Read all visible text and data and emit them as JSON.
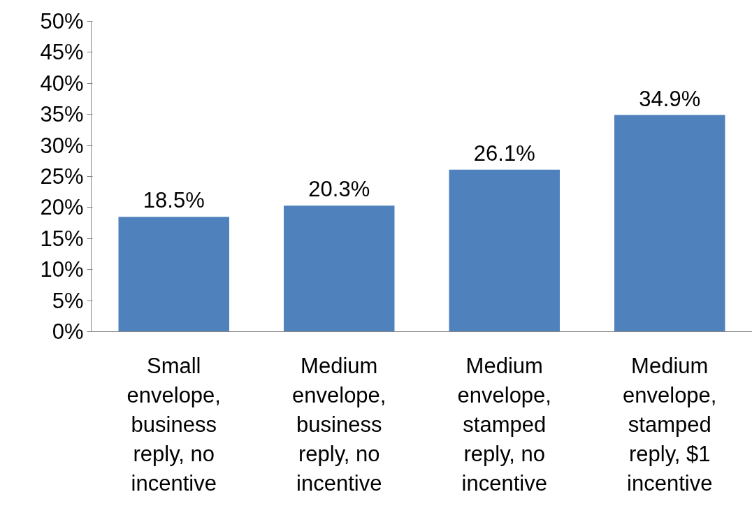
{
  "chart_data": {
    "type": "bar",
    "categories": [
      "Small envelope, business reply, no incentive",
      "Medium envelope, business reply, no incentive",
      "Medium envelope, stamped reply, no incentive",
      "Medium envelope, stamped reply, $1 incentive"
    ],
    "values": [
      18.5,
      20.3,
      26.1,
      34.9
    ],
    "value_labels": [
      "18.5%",
      "20.3%",
      "26.1%",
      "34.9%"
    ],
    "color": "#4f81bd",
    "ylim": [
      0,
      50
    ],
    "yticks": [
      {
        "value": 0,
        "label": "0%"
      },
      {
        "value": 5,
        "label": "5%"
      },
      {
        "value": 10,
        "label": "10%"
      },
      {
        "value": 15,
        "label": "15%"
      },
      {
        "value": 20,
        "label": "20%"
      },
      {
        "value": 25,
        "label": "25%"
      },
      {
        "value": 30,
        "label": "30%"
      },
      {
        "value": 35,
        "label": "35%"
      },
      {
        "value": 40,
        "label": "40%"
      },
      {
        "value": 45,
        "label": "45%"
      },
      {
        "value": 50,
        "label": "50%"
      }
    ]
  }
}
